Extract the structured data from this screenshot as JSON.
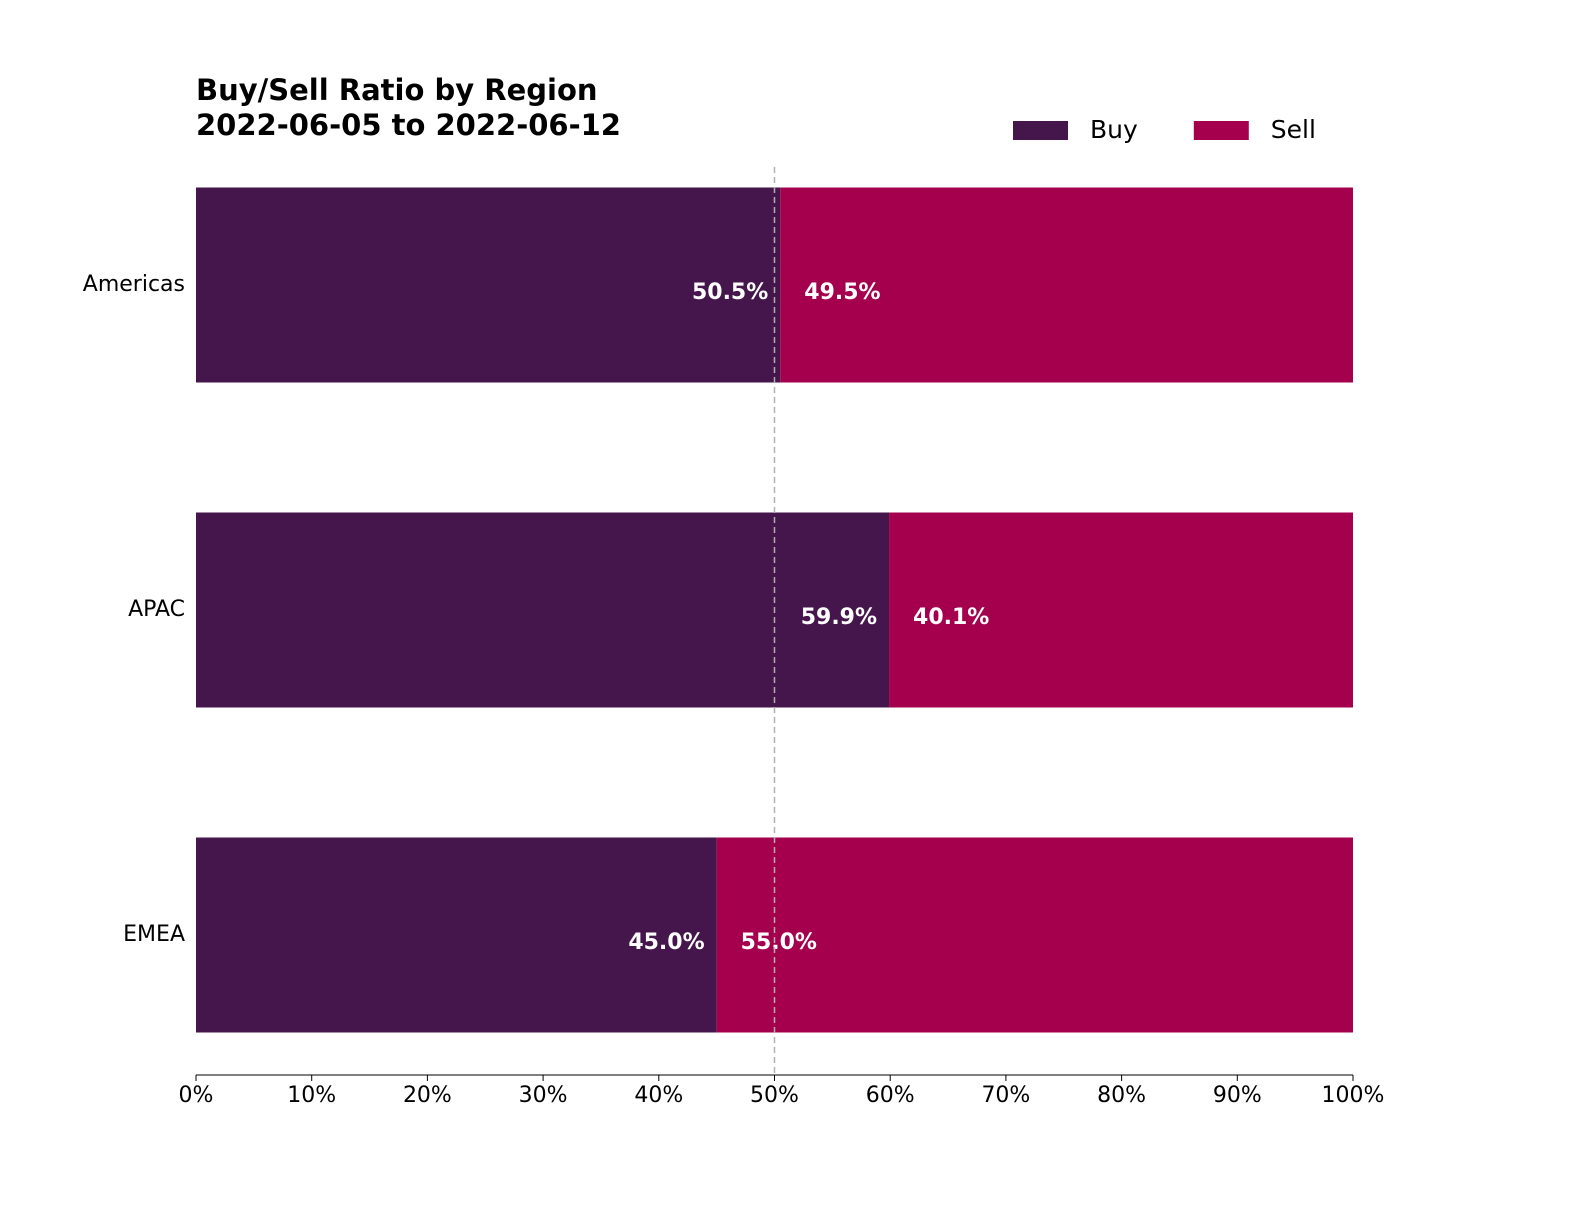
{
  "chart_data": {
    "type": "stacked_barh",
    "title": "Buy/Sell Ratio by Region",
    "subtitle": "2022-06-05 to 2022-06-12",
    "categories": [
      "Americas",
      "APAC",
      "EMEA"
    ],
    "series": [
      {
        "name": "Buy",
        "color": "#45164b",
        "values": [
          50.5,
          59.9,
          45.0
        ],
        "value_labels": [
          "50.5%",
          "59.9%",
          "45.0%"
        ]
      },
      {
        "name": "Sell",
        "color": "#a5004e",
        "values": [
          49.5,
          40.1,
          55.0
        ],
        "value_labels": [
          "49.5%",
          "40.1%",
          "55.0%"
        ]
      }
    ],
    "xlim": [
      0,
      100
    ],
    "xticks": [
      {
        "value": 0,
        "label": "0%"
      },
      {
        "value": 10,
        "label": "10%"
      },
      {
        "value": 20,
        "label": "20%"
      },
      {
        "value": 30,
        "label": "30%"
      },
      {
        "value": 40,
        "label": "40%"
      },
      {
        "value": 50,
        "label": "50%"
      },
      {
        "value": 60,
        "label": "60%"
      },
      {
        "value": 70,
        "label": "70%"
      },
      {
        "value": 80,
        "label": "80%"
      },
      {
        "value": 90,
        "label": "90%"
      },
      {
        "value": 100,
        "label": "100%"
      }
    ],
    "reference_line": 50,
    "legend": "upper right"
  }
}
